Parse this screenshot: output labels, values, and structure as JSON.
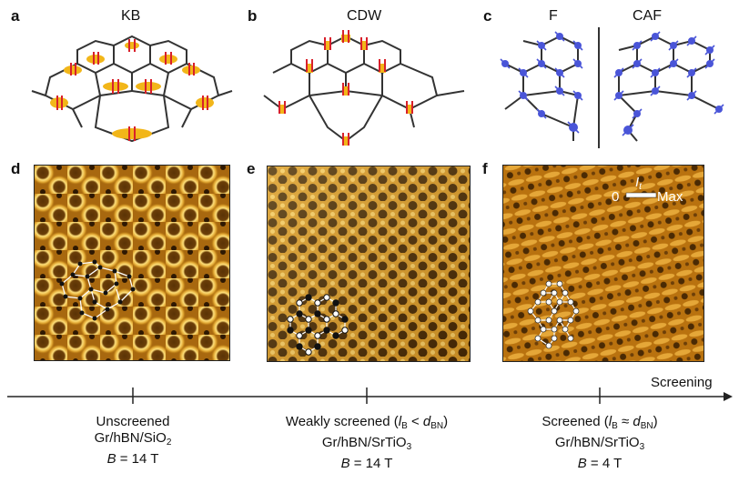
{
  "panels": {
    "a": {
      "label": "a",
      "title": "KB"
    },
    "b": {
      "label": "b",
      "title": "CDW"
    },
    "c": {
      "label": "c",
      "title_left": "F",
      "title_right": "CAF"
    },
    "d": {
      "label": "d"
    },
    "e": {
      "label": "e"
    },
    "f": {
      "label": "f",
      "colorbar_symbol": "I",
      "colorbar_sub": "t",
      "colorbar_min": "0",
      "colorbar_max": "Max"
    }
  },
  "axis": {
    "label": "Screening"
  },
  "captions": [
    {
      "line1": "Unscreened",
      "line2a": "Gr/hBN/SiO",
      "line2sub": "2",
      "line3_var": "B",
      "line3_rest": " = 14 T"
    },
    {
      "line1a": "Weakly screened (",
      "line1_l": "l",
      "line1_lsub": "B",
      "line1_mid": " < ",
      "line1_d": "d",
      "line1_dsub": "BN",
      "line1_end": ")",
      "line2a": "Gr/hBN/SrTiO",
      "line2sub": "3",
      "line3_var": "B",
      "line3_rest": " = 14 T"
    },
    {
      "line1a": "Screened (",
      "line1_l": "l",
      "line1_lsub": "B",
      "line1_mid": " ≈ ",
      "line1_d": "d",
      "line1_dsub": "BN",
      "line1_end": ")",
      "line2a": "Gr/hBN/SrTiO",
      "line2sub": "3",
      "line3_var": "B",
      "line3_rest": " = 4 T"
    }
  ],
  "colors": {
    "bond": "#333333",
    "ellipse": "#f2b619",
    "arrow": "#d8202a",
    "spin": "#4a55d8",
    "stm_dark": "#3b2203",
    "stm_mid": "#c98a1c",
    "stm_light": "#ffe07a"
  }
}
